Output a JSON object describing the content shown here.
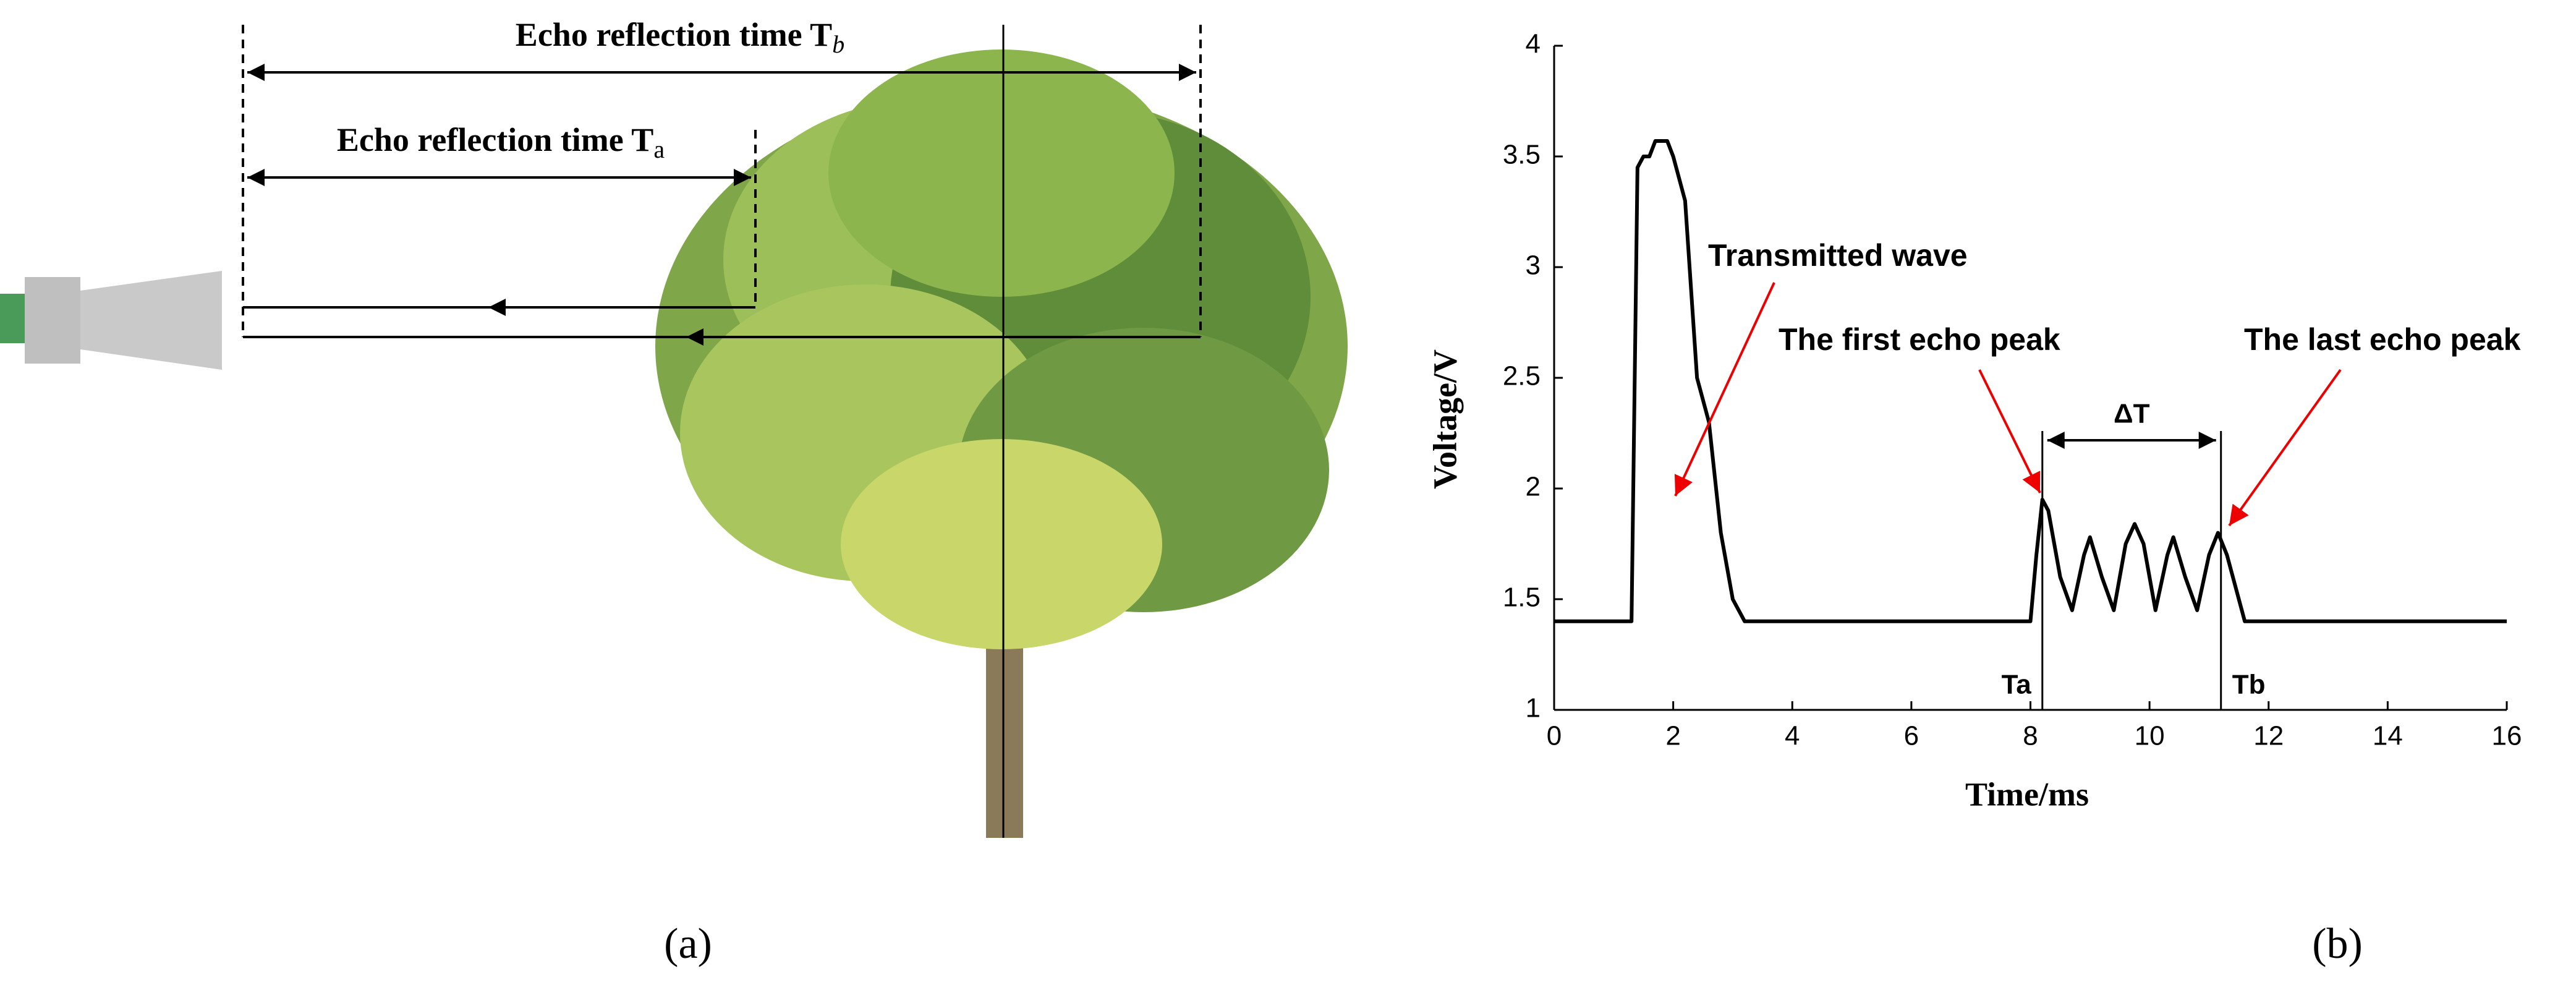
{
  "diagram": {
    "label_b": {
      "text": "Echo reflection time T",
      "subscript": "b"
    },
    "label_a": {
      "text": "Echo reflection time T",
      "subscript": "a"
    },
    "caption": "(a)"
  },
  "chart_data": {
    "type": "line",
    "caption": "(b)",
    "xlabel": "Time/ms",
    "ylabel": "Voltage/V",
    "color": "#000000",
    "x": [
      0,
      1.3,
      1.4,
      1.5,
      1.6,
      1.7,
      1.9,
      2.0,
      2.2,
      2.4,
      2.6,
      2.8,
      3.0,
      3.2,
      8.0,
      8.1,
      8.2,
      8.3,
      8.5,
      8.7,
      8.9,
      9.0,
      9.2,
      9.4,
      9.6,
      9.75,
      9.9,
      10.1,
      10.3,
      10.4,
      10.6,
      10.8,
      11.0,
      11.15,
      11.3,
      11.6,
      16
    ],
    "values": [
      1.4,
      1.4,
      3.45,
      3.5,
      3.5,
      3.57,
      3.57,
      3.5,
      3.3,
      2.5,
      2.3,
      1.8,
      1.5,
      1.4,
      1.4,
      1.7,
      1.95,
      1.9,
      1.6,
      1.45,
      1.7,
      1.78,
      1.6,
      1.45,
      1.75,
      1.84,
      1.75,
      1.45,
      1.7,
      1.78,
      1.6,
      1.45,
      1.7,
      1.8,
      1.7,
      1.4,
      1.4
    ],
    "xlim": [
      0,
      16
    ],
    "ylim": [
      1,
      4
    ],
    "xticks": [
      0,
      2,
      4,
      6,
      8,
      10,
      12,
      14,
      16
    ],
    "yticks": [
      1,
      1.5,
      2,
      2.5,
      3,
      3.5,
      4
    ],
    "markers": [
      {
        "label": "Ta",
        "x": 8.2
      },
      {
        "label": "Tb",
        "x": 11.2
      }
    ],
    "interval_label": "ΔT",
    "annotations": [
      "Transmitted wave",
      "The first echo peak",
      "The last echo peak"
    ]
  }
}
